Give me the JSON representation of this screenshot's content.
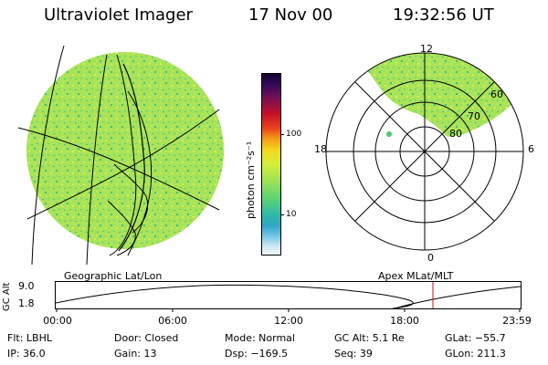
{
  "header": {
    "instrument": "Ultraviolet Imager",
    "date": "17 Nov 00",
    "time": "19:32:56 UT"
  },
  "colorbar": {
    "unit_label": "photon cm⁻²s⁻¹",
    "tick_labels": [
      "100",
      "10"
    ]
  },
  "polar_plot": {
    "mlt_labels": [
      "12",
      "18",
      "6",
      "0"
    ],
    "mlat_labels": [
      "60",
      "70",
      "80"
    ]
  },
  "subtitles": {
    "left": "Geographic Lat/Lon",
    "right": "Apex MLat/MLT"
  },
  "altitude_panel": {
    "axis_label": "GC Alt",
    "y_ticks": [
      "9.0",
      "1.8"
    ],
    "x_ticks": [
      "00:00",
      "06:00",
      "12:00",
      "18:00",
      "23:59"
    ],
    "current_time_marker": "19:32:56"
  },
  "status": {
    "flt": "Flt: LBHL",
    "ip": "IP: 36.0",
    "door": "Door: Closed",
    "gain": "Gain: 13",
    "mode": "Mode: Normal",
    "dsp": "Dsp: −169.5",
    "gc_alt": "GC Alt: 5.1 Re",
    "seq": "Seq: 39",
    "glat": "GLat: −55.7",
    "glon": "GLon: 211.3"
  },
  "colors": {
    "background": "#ffffff",
    "emission_base": "#a6e65a",
    "marker_red": "#d01010"
  }
}
